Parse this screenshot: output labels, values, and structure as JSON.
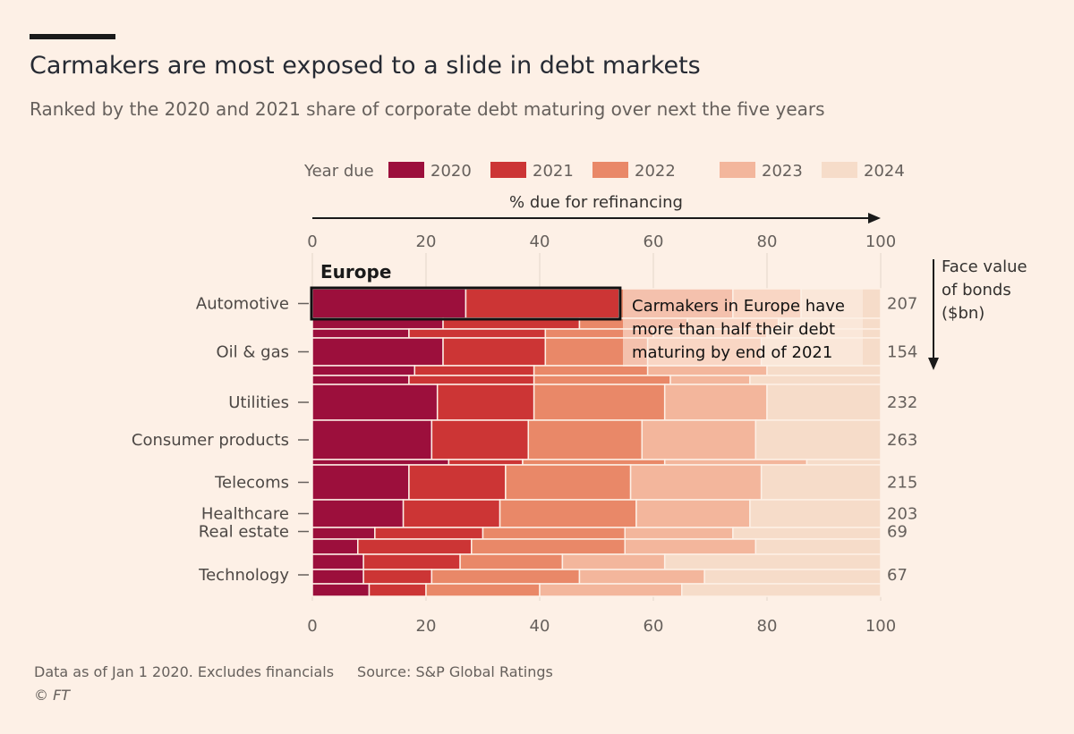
{
  "title": "Carmakers are most exposed to a slide in debt markets",
  "subtitle": "Ranked by the 2020 and 2021 share of corporate debt maturing over next the five years",
  "footer": {
    "note": "Data as of Jan 1 2020. Excludes financials",
    "source": "Source: S&P Global Ratings",
    "copyright": "© FT"
  },
  "colors": {
    "background": "#fdf0e6",
    "year_colors": [
      "#9c0f3c",
      "#cc3535",
      "#e98868",
      "#f3b69c",
      "#f6dcc9"
    ]
  },
  "chart_data": {
    "type": "bar",
    "orientation": "horizontal",
    "stacked": true,
    "legend_title": "Year due",
    "axis_label": "% due for refinancing",
    "xlim": [
      0,
      100
    ],
    "x_ticks": [
      "0",
      "20",
      "40",
      "60",
      "80",
      "100"
    ],
    "region_label": "Europe",
    "face_value_label": [
      "Face value",
      "of bonds",
      "($bn)"
    ],
    "series": [
      {
        "name": "2020"
      },
      {
        "name": "2021"
      },
      {
        "name": "2022"
      },
      {
        "name": "2023"
      },
      {
        "name": "2024"
      }
    ],
    "rows": [
      {
        "label": "Automotive",
        "face_value": "207",
        "cum": [
          27,
          54,
          74,
          86,
          100
        ]
      },
      {
        "label": "",
        "face_value": "",
        "cum": [
          23,
          47,
          66,
          82,
          100
        ]
      },
      {
        "label": "",
        "face_value": "",
        "cum": [
          17,
          41,
          60,
          80,
          100
        ]
      },
      {
        "label": "Oil & gas",
        "face_value": "154",
        "cum": [
          23,
          41,
          59,
          79,
          100
        ]
      },
      {
        "label": "",
        "face_value": "",
        "cum": [
          18,
          39,
          59,
          80,
          100
        ]
      },
      {
        "label": "",
        "face_value": "",
        "cum": [
          17,
          39,
          63,
          77,
          100
        ]
      },
      {
        "label": "Utilities",
        "face_value": "232",
        "cum": [
          22,
          39,
          62,
          80,
          100
        ]
      },
      {
        "label": "Consumer products",
        "face_value": "263",
        "cum": [
          21,
          38,
          58,
          78,
          100
        ]
      },
      {
        "label": "",
        "face_value": "",
        "cum": [
          24,
          37,
          62,
          87,
          100
        ]
      },
      {
        "label": "Telecoms",
        "face_value": "215",
        "cum": [
          17,
          34,
          56,
          79,
          100
        ]
      },
      {
        "label": "Healthcare",
        "face_value": "203",
        "cum": [
          16,
          33,
          57,
          77,
          100
        ]
      },
      {
        "label": "Real estate",
        "face_value": "69",
        "cum": [
          11,
          30,
          55,
          74,
          100
        ]
      },
      {
        "label": "",
        "face_value": "",
        "cum": [
          8,
          28,
          55,
          78,
          100
        ]
      },
      {
        "label": "",
        "face_value": "",
        "cum": [
          9,
          26,
          44,
          62,
          100
        ]
      },
      {
        "label": "Technology",
        "face_value": "67",
        "cum": [
          9,
          21,
          47,
          69,
          100
        ]
      },
      {
        "label": "",
        "face_value": "",
        "cum": [
          10,
          20,
          40,
          65,
          100
        ]
      }
    ],
    "annotation": {
      "row": "Automotive",
      "range": [
        0,
        54
      ],
      "text": [
        "Carmakers in Europe have",
        "more than half their debt",
        "maturing by end of 2021"
      ]
    }
  }
}
